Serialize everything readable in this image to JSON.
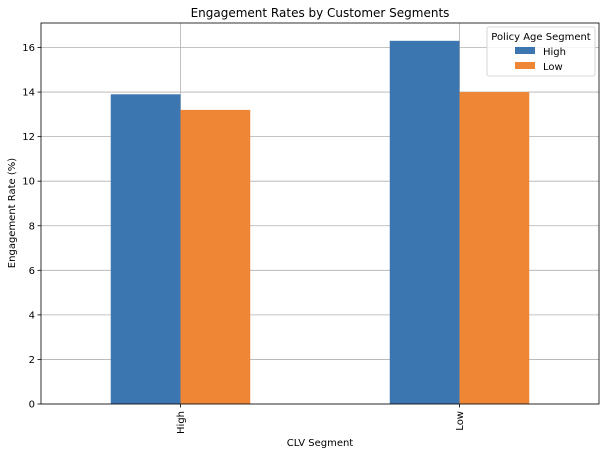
{
  "chart_data": {
    "type": "bar",
    "title": "Engagement Rates by Customer Segments",
    "xlabel": "CLV Segment",
    "ylabel": "Engagement Rate (%)",
    "categories": [
      "High",
      "Low"
    ],
    "series": [
      {
        "name": "High",
        "values": [
          13.9,
          16.3
        ],
        "color": "#3b76b1"
      },
      {
        "name": "Low",
        "values": [
          13.2,
          14.0
        ],
        "color": "#ef8636"
      }
    ],
    "ylim": [
      0,
      17.1
    ],
    "yticks": [
      0,
      2,
      4,
      6,
      8,
      10,
      12,
      14,
      16
    ],
    "grid": true,
    "legend": {
      "title": "Policy Age Segment",
      "placement": "top-right"
    }
  }
}
